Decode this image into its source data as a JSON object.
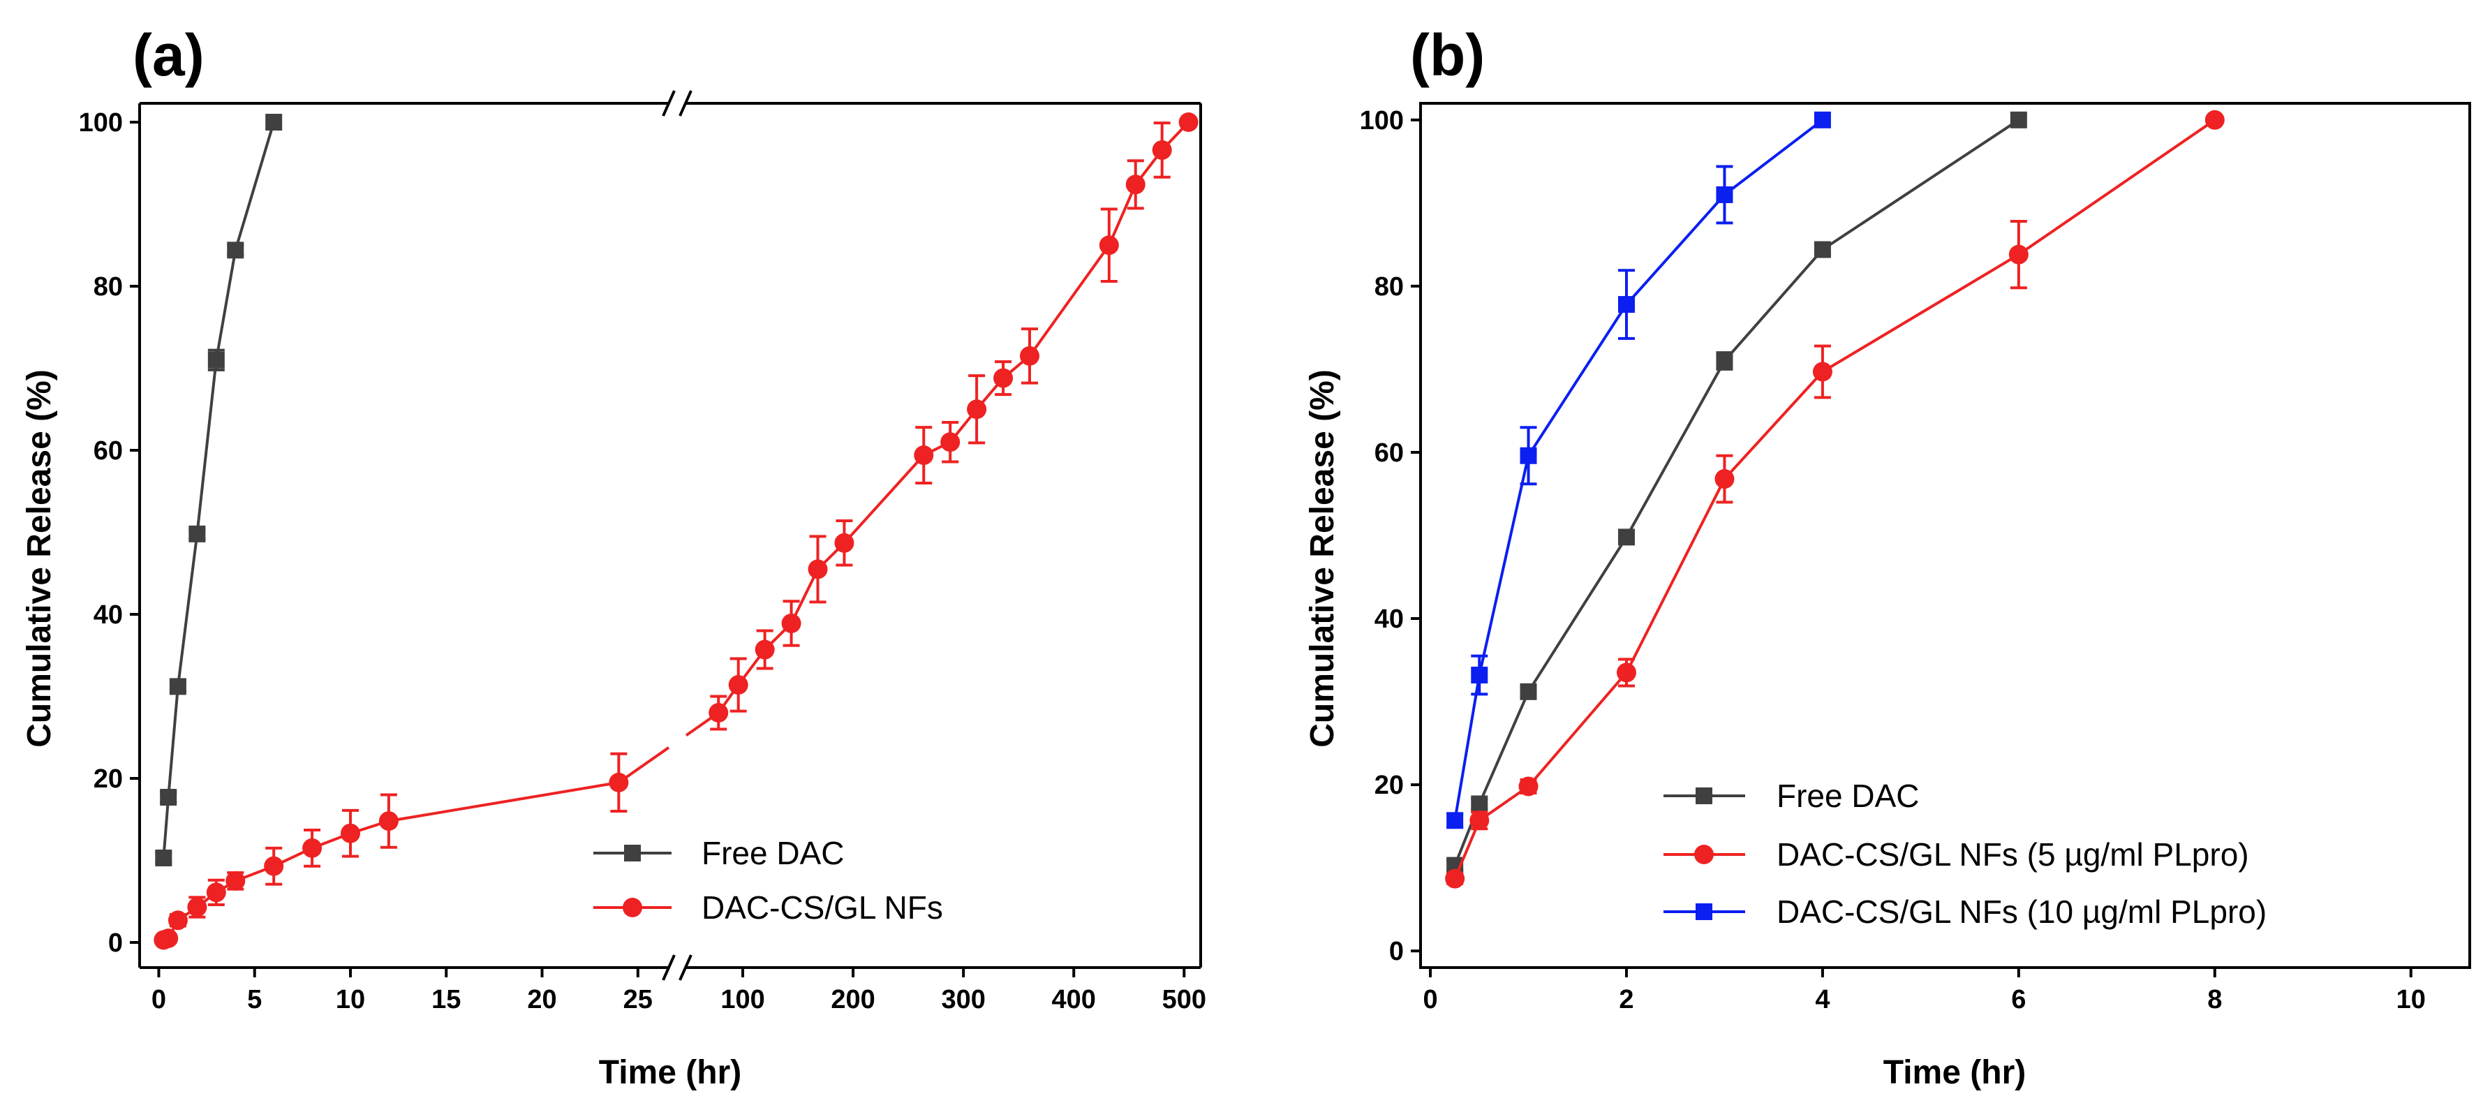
{
  "chart_data": [
    {
      "panel_label": "(a)",
      "type": "line",
      "xlabel": "Time (hr)",
      "ylabel": "Cumulative Release (%)",
      "ylim": [
        0,
        100
      ],
      "yticks": [
        0,
        20,
        40,
        60,
        80,
        100
      ],
      "x_axis_break": true,
      "x_segments": [
        {
          "range": [
            -1,
            26.5
          ],
          "ticks": [
            0,
            5,
            10,
            15,
            20,
            25
          ]
        },
        {
          "range": [
            50,
            515
          ],
          "ticks": [
            100,
            200,
            300,
            400,
            500
          ]
        }
      ],
      "legend_position": "bottom-right",
      "series": [
        {
          "name": "Free DAC",
          "color": "#404040",
          "marker": "square",
          "x": [
            0.25,
            0.5,
            1,
            2,
            3,
            4,
            6
          ],
          "y": [
            10.3,
            17.7,
            31.2,
            49.8,
            71.0,
            84.4,
            100
          ],
          "err": [
            0.6,
            0.6,
            0.6,
            0.6,
            1.2,
            0.6,
            0
          ]
        },
        {
          "name": "DAC-CS/GL NFs",
          "color": "#ee2222",
          "marker": "circle",
          "x": [
            0.25,
            0.5,
            1,
            2,
            3,
            4,
            6,
            8,
            10,
            12,
            24,
            78,
            96,
            120,
            144,
            168,
            192,
            264,
            288,
            312,
            336,
            360,
            432,
            456,
            480,
            504
          ],
          "y": [
            0.3,
            0.5,
            2.7,
            4.3,
            6.1,
            7.5,
            9.3,
            11.5,
            13.3,
            14.8,
            19.5,
            28.0,
            31.4,
            35.7,
            38.9,
            45.5,
            48.7,
            59.4,
            61.0,
            65.0,
            68.8,
            71.5,
            85.0,
            92.4,
            96.6,
            100
          ],
          "err": [
            0.3,
            0.5,
            0.7,
            1.2,
            1.5,
            1.0,
            2.2,
            2.2,
            2.8,
            3.2,
            3.5,
            2.0,
            3.2,
            2.3,
            2.7,
            4.0,
            2.7,
            3.4,
            2.4,
            4.1,
            2.0,
            3.3,
            4.4,
            2.9,
            3.3,
            0
          ]
        }
      ]
    },
    {
      "panel_label": "(b)",
      "type": "line",
      "xlabel": "Time (hr)",
      "ylabel": "Cumulative Release (%)",
      "xlim": [
        -0.1,
        10.6
      ],
      "ylim": [
        -2,
        102
      ],
      "xticks": [
        0,
        2,
        4,
        6,
        8,
        10
      ],
      "yticks": [
        0,
        20,
        40,
        60,
        80,
        100
      ],
      "legend_position": "bottom-right",
      "series": [
        {
          "name": "Free DAC",
          "color": "#404040",
          "marker": "square",
          "x": [
            0.25,
            0.5,
            1,
            2,
            3,
            4,
            6
          ],
          "y": [
            10.3,
            17.7,
            31.2,
            49.8,
            71.0,
            84.4,
            100
          ],
          "err": [
            0.6,
            0.6,
            0.6,
            0.6,
            1.0,
            0.6,
            0
          ]
        },
        {
          "name": "DAC-CS/GL NFs (5 µg/ml PLpro)",
          "color": "#ee2222",
          "marker": "circle",
          "x": [
            0.25,
            0.5,
            1,
            2,
            3,
            4,
            6,
            8
          ],
          "y": [
            8.7,
            15.7,
            19.8,
            33.5,
            56.8,
            69.7,
            83.8,
            100
          ],
          "err": [
            0.6,
            1.0,
            0.8,
            1.6,
            2.8,
            3.1,
            4.0,
            0
          ]
        },
        {
          "name": "DAC-CS/GL NFs (10 µg/ml PLpro)",
          "color": "#0b1ff0",
          "marker": "square",
          "x": [
            0.25,
            0.5,
            1,
            2,
            3,
            4
          ],
          "y": [
            15.7,
            33.2,
            59.6,
            77.8,
            91.0,
            100
          ],
          "err": [
            0.8,
            2.3,
            3.4,
            4.1,
            3.4,
            0
          ]
        }
      ]
    }
  ]
}
